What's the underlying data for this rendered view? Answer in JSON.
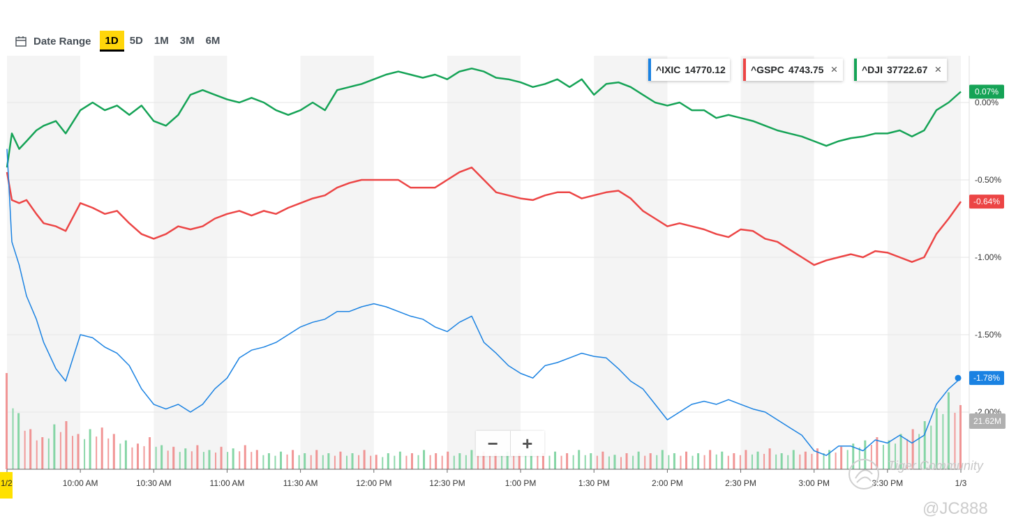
{
  "toolbar": {
    "date_range_label": "Date Range",
    "ranges": [
      "1D",
      "5D",
      "1M",
      "3M",
      "6M"
    ],
    "active_range": "1D"
  },
  "legend": [
    {
      "symbol": "^IXIC",
      "value": "14770.12",
      "color": "#1a82e2",
      "removable": false
    },
    {
      "symbol": "^GSPC",
      "value": "4743.75",
      "color": "#ec4545",
      "removable": true
    },
    {
      "symbol": "^DJI",
      "value": "37722.67",
      "color": "#15a356",
      "removable": true
    }
  ],
  "zoom": {
    "minus": "−",
    "plus": "+"
  },
  "watermark": {
    "community": "Tiger Community",
    "user": "@JC888"
  },
  "chart_data": {
    "type": "line",
    "title": "",
    "x_tick_labels": [
      "1/2",
      "10:00 AM",
      "10:30 AM",
      "11:00 AM",
      "11:30 AM",
      "12:00 PM",
      "12:30 PM",
      "1:00 PM",
      "1:30 PM",
      "2:00 PM",
      "2:30 PM",
      "3:00 PM",
      "3:30 PM",
      "1/3"
    ],
    "x_tick_minutes": [
      0,
      30,
      60,
      90,
      120,
      150,
      180,
      210,
      240,
      270,
      300,
      330,
      360,
      390
    ],
    "y_tick_labels": [
      "0.00%",
      "-0.50%",
      "-1.00%",
      "-1.50%",
      "-2.00%"
    ],
    "y_tick_values": [
      0.0,
      -0.5,
      -1.0,
      -1.5,
      -2.0
    ],
    "ylim": [
      -2.3,
      0.3
    ],
    "xlim_minutes": [
      0,
      390
    ],
    "series": [
      {
        "name": "^DJI",
        "color": "#15a356",
        "last_label": "0.07%",
        "x": [
          0,
          2,
          5,
          8,
          12,
          15,
          20,
          24,
          30,
          35,
          40,
          45,
          50,
          55,
          60,
          65,
          70,
          75,
          80,
          85,
          90,
          95,
          100,
          105,
          110,
          115,
          120,
          125,
          130,
          135,
          140,
          145,
          150,
          155,
          160,
          165,
          170,
          175,
          180,
          185,
          190,
          195,
          200,
          205,
          210,
          215,
          220,
          225,
          230,
          235,
          240,
          245,
          250,
          255,
          260,
          265,
          270,
          275,
          280,
          285,
          290,
          295,
          300,
          305,
          310,
          315,
          320,
          325,
          330,
          335,
          340,
          345,
          350,
          355,
          360,
          365,
          370,
          375,
          380,
          385,
          390
        ],
        "y": [
          -0.42,
          -0.2,
          -0.3,
          -0.25,
          -0.18,
          -0.15,
          -0.12,
          -0.2,
          -0.05,
          0.0,
          -0.05,
          -0.02,
          -0.08,
          -0.02,
          -0.12,
          -0.15,
          -0.08,
          0.05,
          0.08,
          0.05,
          0.02,
          0.0,
          0.03,
          0.0,
          -0.05,
          -0.08,
          -0.05,
          0.0,
          -0.05,
          0.08,
          0.1,
          0.12,
          0.15,
          0.18,
          0.2,
          0.18,
          0.16,
          0.18,
          0.15,
          0.2,
          0.22,
          0.2,
          0.16,
          0.15,
          0.13,
          0.1,
          0.12,
          0.15,
          0.1,
          0.15,
          0.05,
          0.12,
          0.13,
          0.1,
          0.05,
          0.0,
          -0.02,
          0.0,
          -0.05,
          -0.05,
          -0.1,
          -0.08,
          -0.1,
          -0.12,
          -0.15,
          -0.18,
          -0.2,
          -0.22,
          -0.25,
          -0.28,
          -0.25,
          -0.23,
          -0.22,
          -0.2,
          -0.2,
          -0.18,
          -0.22,
          -0.18,
          -0.05,
          0.0,
          0.07
        ]
      },
      {
        "name": "^GSPC",
        "color": "#ec4545",
        "last_label": "-0.64%",
        "x": [
          0,
          2,
          5,
          8,
          12,
          15,
          20,
          24,
          30,
          35,
          40,
          45,
          50,
          55,
          60,
          65,
          70,
          75,
          80,
          85,
          90,
          95,
          100,
          105,
          110,
          115,
          120,
          125,
          130,
          135,
          140,
          145,
          150,
          155,
          160,
          165,
          170,
          175,
          180,
          185,
          190,
          195,
          200,
          205,
          210,
          215,
          220,
          225,
          230,
          235,
          240,
          245,
          250,
          255,
          260,
          265,
          270,
          275,
          280,
          285,
          290,
          295,
          300,
          305,
          310,
          315,
          320,
          325,
          330,
          335,
          340,
          345,
          350,
          355,
          360,
          365,
          370,
          375,
          380,
          385,
          390
        ],
        "y": [
          -0.45,
          -0.63,
          -0.65,
          -0.63,
          -0.72,
          -0.78,
          -0.8,
          -0.83,
          -0.65,
          -0.68,
          -0.72,
          -0.7,
          -0.78,
          -0.85,
          -0.88,
          -0.85,
          -0.8,
          -0.82,
          -0.8,
          -0.75,
          -0.72,
          -0.7,
          -0.73,
          -0.7,
          -0.72,
          -0.68,
          -0.65,
          -0.62,
          -0.6,
          -0.55,
          -0.52,
          -0.5,
          -0.5,
          -0.5,
          -0.5,
          -0.55,
          -0.55,
          -0.55,
          -0.5,
          -0.45,
          -0.42,
          -0.5,
          -0.58,
          -0.6,
          -0.62,
          -0.63,
          -0.6,
          -0.58,
          -0.58,
          -0.62,
          -0.6,
          -0.58,
          -0.57,
          -0.62,
          -0.7,
          -0.75,
          -0.8,
          -0.78,
          -0.8,
          -0.82,
          -0.85,
          -0.87,
          -0.82,
          -0.83,
          -0.88,
          -0.9,
          -0.95,
          -1.0,
          -1.05,
          -1.02,
          -1.0,
          -0.98,
          -1.0,
          -0.96,
          -0.97,
          -1.0,
          -1.03,
          -1.0,
          -0.85,
          -0.75,
          -0.64
        ]
      },
      {
        "name": "^IXIC",
        "color": "#1a82e2",
        "last_label": "-1.78%",
        "x": [
          0,
          2,
          5,
          8,
          12,
          15,
          20,
          24,
          30,
          35,
          40,
          45,
          50,
          55,
          60,
          65,
          70,
          75,
          80,
          85,
          90,
          95,
          100,
          105,
          110,
          115,
          120,
          125,
          130,
          135,
          140,
          145,
          150,
          155,
          160,
          165,
          170,
          175,
          180,
          185,
          190,
          195,
          200,
          205,
          210,
          215,
          220,
          225,
          230,
          235,
          240,
          245,
          250,
          255,
          260,
          265,
          270,
          275,
          280,
          285,
          290,
          295,
          300,
          305,
          310,
          315,
          320,
          325,
          330,
          335,
          340,
          345,
          350,
          355,
          360,
          365,
          370,
          375,
          380,
          385,
          390
        ],
        "y": [
          -0.3,
          -0.9,
          -1.05,
          -1.25,
          -1.4,
          -1.55,
          -1.72,
          -1.8,
          -1.5,
          -1.52,
          -1.58,
          -1.62,
          -1.7,
          -1.85,
          -1.95,
          -1.98,
          -1.95,
          -2.0,
          -1.95,
          -1.85,
          -1.78,
          -1.65,
          -1.6,
          -1.58,
          -1.55,
          -1.5,
          -1.45,
          -1.42,
          -1.4,
          -1.35,
          -1.35,
          -1.32,
          -1.3,
          -1.32,
          -1.35,
          -1.38,
          -1.4,
          -1.45,
          -1.48,
          -1.42,
          -1.38,
          -1.55,
          -1.62,
          -1.7,
          -1.75,
          -1.78,
          -1.7,
          -1.68,
          -1.65,
          -1.62,
          -1.64,
          -1.65,
          -1.72,
          -1.8,
          -1.85,
          -1.95,
          -2.05,
          -2.0,
          -1.95,
          -1.93,
          -1.95,
          -1.92,
          -1.95,
          -1.98,
          -2.0,
          -2.05,
          -2.1,
          -2.15,
          -2.25,
          -2.28,
          -2.22,
          -2.22,
          -2.25,
          -2.18,
          -2.2,
          -2.15,
          -2.2,
          -2.15,
          -1.95,
          -1.85,
          -1.78
        ]
      }
    ],
    "volume": {
      "last_label": "21.62M",
      "values": [
        0.6,
        0.35,
        0.25,
        0.2,
        0.28,
        0.3,
        0.22,
        0.25,
        0.26,
        0.22,
        0.18,
        0.16,
        0.2,
        0.15,
        0.14,
        0.13,
        0.15,
        0.12,
        0.14,
        0.13,
        0.15,
        0.12,
        0.1,
        0.11,
        0.12,
        0.1,
        0.12,
        0.1,
        0.11,
        0.1,
        0.12,
        0.09,
        0.1,
        0.11,
        0.1,
        0.12,
        0.1,
        0.11,
        0.1,
        0.12,
        0.11,
        0.1,
        0.11,
        0.1,
        0.12,
        0.1,
        0.11,
        0.1,
        0.12,
        0.1,
        0.11,
        0.09,
        0.1,
        0.11,
        0.1,
        0.12,
        0.1,
        0.11,
        0.1,
        0.12,
        0.11,
        0.1,
        0.12,
        0.11,
        0.13,
        0.1,
        0.12,
        0.11,
        0.13,
        0.12,
        0.14,
        0.16,
        0.18,
        0.2,
        0.18,
        0.22,
        0.25,
        0.3,
        0.38,
        0.48,
        0.4
      ],
      "colors": [
        "r",
        "g",
        "r",
        "r",
        "g",
        "r",
        "r",
        "g",
        "r",
        "r",
        "g",
        "r",
        "r",
        "g",
        "r",
        "g",
        "r",
        "g",
        "r",
        "g",
        "r",
        "r",
        "g",
        "g",
        "r",
        "g",
        "r",
        "g",
        "r",
        "g",
        "r",
        "r",
        "g",
        "g",
        "r",
        "g",
        "r",
        "r",
        "g",
        "g",
        "r",
        "r",
        "g",
        "r",
        "g",
        "r",
        "g",
        "r",
        "g",
        "g",
        "r",
        "g",
        "r",
        "g",
        "r",
        "g",
        "g",
        "r",
        "g",
        "r",
        "g",
        "r",
        "r",
        "g",
        "r",
        "g",
        "g",
        "r",
        "r",
        "g",
        "r",
        "g",
        "g",
        "r",
        "g",
        "g",
        "r",
        "g",
        "g",
        "g",
        "r"
      ]
    }
  }
}
